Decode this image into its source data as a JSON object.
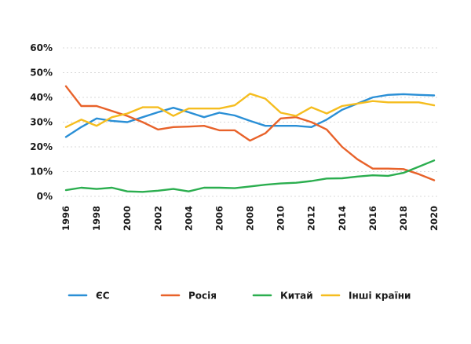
{
  "chart_data": {
    "type": "line",
    "title": "",
    "xlabel": "",
    "ylabel": "",
    "x": [
      1996,
      1997,
      1998,
      1999,
      2000,
      2001,
      2002,
      2003,
      2004,
      2005,
      2006,
      2007,
      2008,
      2009,
      2010,
      2011,
      2012,
      2013,
      2014,
      2015,
      2016,
      2017,
      2018,
      2019,
      2020
    ],
    "xticks": [
      "1996",
      "1998",
      "2000",
      "2002",
      "2004",
      "2006",
      "2008",
      "2010",
      "2012",
      "2014",
      "2016",
      "2018",
      "2020"
    ],
    "yticks": [
      "0%",
      "10%",
      "20%",
      "30%",
      "40%",
      "50%",
      "60%"
    ],
    "ylim": [
      0,
      60
    ],
    "grid": "horizontal",
    "legend_position": "bottom",
    "series": [
      {
        "name": "ЄС",
        "color": "#2a8fd6",
        "values": [
          24,
          28,
          31.5,
          30.5,
          30,
          32,
          34,
          35.8,
          34,
          32,
          33.8,
          32.7,
          30.5,
          28.5,
          28.5,
          28.5,
          28,
          31,
          35,
          37.5,
          40,
          41,
          41.3,
          41,
          40.8
        ]
      },
      {
        "name": "Росія",
        "color": "#e8622a",
        "values": [
          44.5,
          36.5,
          36.5,
          34.5,
          32.5,
          30,
          27,
          28,
          28.2,
          28.5,
          26.7,
          26.7,
          22.5,
          25.5,
          31.5,
          32,
          30,
          27,
          20,
          15,
          11.2,
          11.2,
          11,
          9,
          6.5
        ]
      },
      {
        "name": "Китай",
        "color": "#2bae4f",
        "values": [
          2.5,
          3.5,
          3,
          3.5,
          2,
          1.8,
          2.3,
          3,
          2,
          3.5,
          3.5,
          3.3,
          4,
          4.7,
          5.2,
          5.5,
          6.2,
          7.2,
          7.3,
          8,
          8.5,
          8.3,
          9.5,
          12,
          14.5
        ]
      },
      {
        "name": "Інші країни",
        "color": "#f5bd1f",
        "values": [
          28,
          31,
          28.5,
          32,
          33.5,
          36,
          36,
          32.5,
          35.5,
          35.5,
          35.5,
          36.8,
          41.5,
          39.5,
          33.8,
          32.5,
          36,
          33.5,
          36.5,
          37.5,
          38.5,
          38,
          38,
          38,
          36.8
        ]
      }
    ]
  }
}
